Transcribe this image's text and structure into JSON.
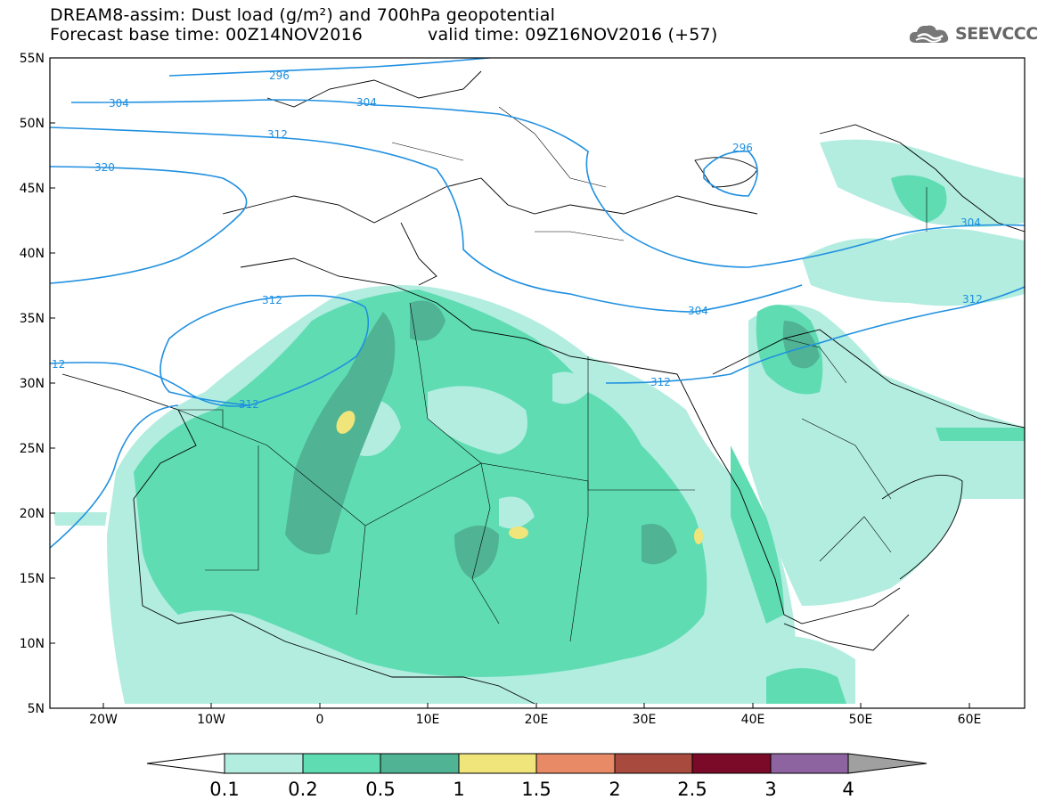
{
  "header": {
    "title_line1": "DREAM8-assim: Dust load (g/m²) and 700hPa geopotential",
    "title_line2": "Forecast base time: 00Z14NOV2016",
    "title_line2b": "valid time: 09Z16NOV2016 (+57)",
    "logo_text": "SEEVCCC"
  },
  "map": {
    "lon_labels": [
      "20W",
      "10W",
      "0",
      "10E",
      "20E",
      "30E",
      "40E",
      "50E",
      "60E"
    ],
    "lat_labels": [
      "55N",
      "50N",
      "45N",
      "40N",
      "35N",
      "30N",
      "25N",
      "20N",
      "15N",
      "10N",
      "5N"
    ],
    "contour_labels": [
      "296",
      "304",
      "304",
      "312",
      "320",
      "296",
      "304",
      "312",
      "312",
      "12",
      "312",
      "312",
      "304"
    ],
    "colors": {
      "level1": "#b2ede0",
      "level2": "#5fdcb2",
      "level3": "#4fb394",
      "level4": "#f0e57a",
      "contour": "#2090e0",
      "border": "#000000"
    }
  },
  "colorbar": {
    "labels": [
      "0.1",
      "0.2",
      "0.5",
      "1",
      "1.5",
      "2",
      "2.5",
      "3",
      "4"
    ],
    "colors": [
      "#b2ede0",
      "#5fdcb2",
      "#4fb394",
      "#f0e57a",
      "#e88a66",
      "#a84a3e",
      "#7a0a28",
      "#8e64a0"
    ],
    "left_arrow_color": "#ffffff",
    "right_arrow_color": "#a0a0a0"
  }
}
